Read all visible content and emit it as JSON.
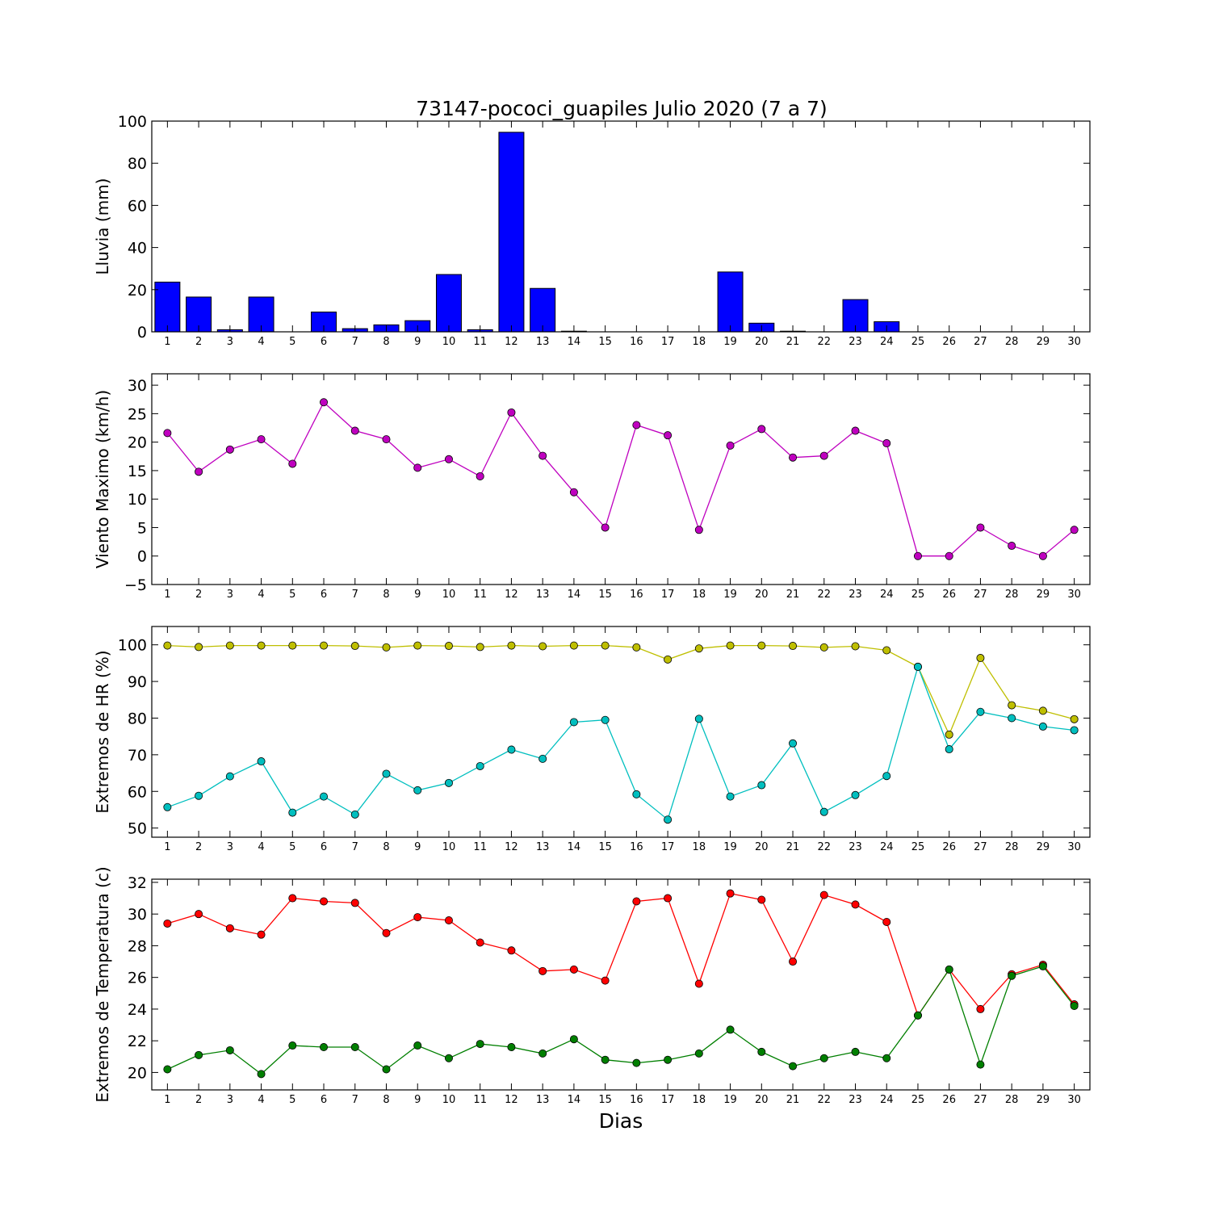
{
  "title": "73147-pococi_guapiles Julio 2020  (7 a 7)",
  "xlabel": "Dias",
  "chart_data": [
    {
      "type": "bar",
      "ylabel": "Lluvia (mm)",
      "ylim": [
        0,
        100
      ],
      "yticks": [
        0,
        20,
        40,
        60,
        80,
        100
      ],
      "xlim": [
        0.5,
        30.5
      ],
      "categories": [
        "1",
        "2",
        "3",
        "4",
        "5",
        "6",
        "7",
        "8",
        "9",
        "10",
        "11",
        "12",
        "13",
        "14",
        "15",
        "16",
        "17",
        "18",
        "19",
        "20",
        "21",
        "22",
        "23",
        "24",
        "25",
        "26",
        "27",
        "28",
        "29",
        "30"
      ],
      "series": [
        {
          "color": "#0000ff",
          "values": [
            23.6,
            16.5,
            1.0,
            16.5,
            0.0,
            9.4,
            1.5,
            3.3,
            5.3,
            27.2,
            1.0,
            94.7,
            20.6,
            0.3,
            0.0,
            0.0,
            0.0,
            0.0,
            28.4,
            4.1,
            0.3,
            0.0,
            15.3,
            4.8,
            0.0,
            0.0,
            0.0,
            0.0,
            0.0,
            0.0
          ]
        }
      ]
    },
    {
      "type": "line",
      "ylabel": "Viento Maximo (km/h)",
      "ylim": [
        -5,
        32
      ],
      "yticks": [
        -5,
        0,
        5,
        10,
        15,
        20,
        25,
        30
      ],
      "xlim": [
        0.5,
        30.5
      ],
      "categories": [
        "1",
        "2",
        "3",
        "4",
        "5",
        "6",
        "7",
        "8",
        "9",
        "10",
        "11",
        "12",
        "13",
        "14",
        "15",
        "16",
        "17",
        "18",
        "19",
        "20",
        "21",
        "22",
        "23",
        "24",
        "25",
        "26",
        "27",
        "28",
        "29",
        "30"
      ],
      "series": [
        {
          "color": "#bf00bf",
          "values": [
            21.6,
            14.8,
            18.7,
            20.5,
            16.2,
            27.0,
            22.0,
            20.5,
            15.5,
            17.0,
            14.0,
            25.2,
            17.6,
            11.2,
            5.0,
            23.0,
            21.2,
            4.6,
            19.4,
            22.3,
            17.3,
            17.6,
            22.0,
            19.8,
            0.0,
            0.0,
            5.0,
            1.8,
            0.0,
            4.6
          ]
        }
      ]
    },
    {
      "type": "line",
      "ylabel": "Extremos de HR (%)",
      "ylim": [
        47.5,
        105
      ],
      "yticks": [
        50,
        60,
        70,
        80,
        90,
        100
      ],
      "xlim": [
        0.5,
        30.5
      ],
      "categories": [
        "1",
        "2",
        "3",
        "4",
        "5",
        "6",
        "7",
        "8",
        "9",
        "10",
        "11",
        "12",
        "13",
        "14",
        "15",
        "16",
        "17",
        "18",
        "19",
        "20",
        "21",
        "22",
        "23",
        "24",
        "25",
        "26",
        "27",
        "28",
        "29",
        "30"
      ],
      "series": [
        {
          "color": "#bfbf00",
          "values": [
            99.8,
            99.4,
            99.8,
            99.8,
            99.8,
            99.8,
            99.7,
            99.3,
            99.8,
            99.7,
            99.4,
            99.8,
            99.6,
            99.8,
            99.8,
            99.3,
            96.0,
            99.0,
            99.8,
            99.8,
            99.7,
            99.3,
            99.6,
            98.5,
            94.0,
            75.5,
            96.4,
            83.5,
            82.0,
            79.7
          ]
        },
        {
          "color": "#00bfbf",
          "values": [
            55.7,
            58.8,
            64.1,
            68.2,
            54.2,
            58.6,
            53.7,
            64.8,
            60.3,
            62.3,
            66.9,
            71.4,
            68.9,
            78.9,
            79.5,
            59.2,
            52.3,
            79.8,
            58.6,
            61.7,
            73.1,
            54.4,
            59.0,
            64.2,
            94.0,
            71.5,
            81.7,
            80.0,
            77.7,
            76.7
          ]
        }
      ]
    },
    {
      "type": "line",
      "ylabel": "Extremos de Temperatura (c)",
      "ylim": [
        18.9,
        32.2
      ],
      "yticks": [
        20,
        22,
        24,
        26,
        28,
        30,
        32
      ],
      "xlim": [
        0.5,
        30.5
      ],
      "categories": [
        "1",
        "2",
        "3",
        "4",
        "5",
        "6",
        "7",
        "8",
        "9",
        "10",
        "11",
        "12",
        "13",
        "14",
        "15",
        "16",
        "17",
        "18",
        "19",
        "20",
        "21",
        "22",
        "23",
        "24",
        "25",
        "26",
        "27",
        "28",
        "29",
        "30"
      ],
      "series": [
        {
          "color": "#ff0000",
          "values": [
            29.4,
            30.0,
            29.1,
            28.7,
            31.0,
            30.8,
            30.7,
            28.8,
            29.8,
            29.6,
            28.2,
            27.7,
            26.4,
            26.5,
            25.8,
            30.8,
            31.0,
            25.6,
            31.3,
            30.9,
            27.0,
            31.2,
            30.6,
            29.5,
            23.6,
            26.5,
            24.0,
            26.2,
            26.8,
            24.3
          ]
        },
        {
          "color": "#007f00",
          "values": [
            20.2,
            21.1,
            21.4,
            19.9,
            21.7,
            21.6,
            21.6,
            20.2,
            21.7,
            20.9,
            21.8,
            21.6,
            21.2,
            22.1,
            20.8,
            20.6,
            20.8,
            21.2,
            22.7,
            21.3,
            20.4,
            20.9,
            21.3,
            20.9,
            23.6,
            26.5,
            20.5,
            26.1,
            26.7,
            24.2
          ]
        }
      ]
    }
  ]
}
